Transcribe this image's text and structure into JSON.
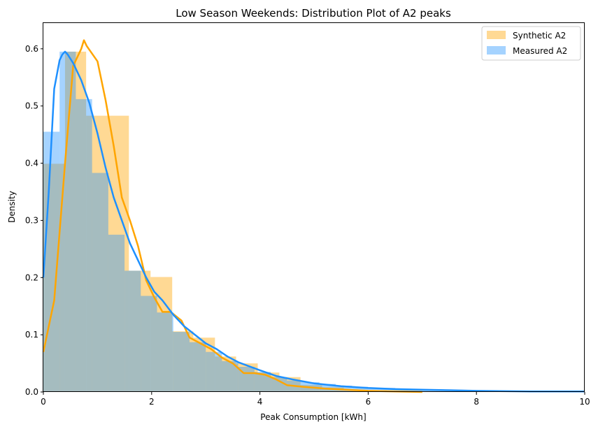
{
  "chart_data": {
    "type": "histogram+kde",
    "title": "Low Season Weekends: Distribution Plot of A2 peaks",
    "xlabel": "Peak Consumption [kWh]",
    "ylabel": "Density",
    "xlim": [
      0,
      10
    ],
    "ylim": [
      0,
      0.645
    ],
    "xticks": [
      0,
      2,
      4,
      6,
      8,
      10
    ],
    "yticks": [
      0.0,
      0.1,
      0.2,
      0.3,
      0.4,
      0.5,
      0.6
    ],
    "ytick_labels": [
      "0.0",
      "0.1",
      "0.2",
      "0.3",
      "0.4",
      "0.5",
      "0.6"
    ],
    "grid": false,
    "legend_position": "top-right",
    "series": [
      {
        "name": "Synthetic A2",
        "color": "#FFA500",
        "hist_edges": [
          0,
          0.4,
          0.79,
          1.58,
          1.98,
          2.38,
          2.77,
          3.17,
          3.56,
          3.96,
          4.36,
          4.75,
          5.15,
          5.55,
          5.94,
          6.34,
          6.73,
          7.13
        ],
        "hist_values": [
          0.399,
          0.595,
          0.483,
          0.212,
          0.201,
          0.106,
          0.095,
          0.062,
          0.05,
          0.034,
          0.026,
          0.012,
          0.008,
          0.004,
          0.003,
          0.002,
          0.001
        ],
        "kde": {
          "x": [
            0,
            0.2,
            0.4,
            0.55,
            0.7,
            0.75,
            0.8,
            1.0,
            1.15,
            1.3,
            1.45,
            1.6,
            1.75,
            1.9,
            2.05,
            2.2,
            2.35,
            2.55,
            2.7,
            2.9,
            3.1,
            3.3,
            3.5,
            3.7,
            3.9,
            4.1,
            4.3,
            4.5,
            4.8,
            5.2,
            5.6,
            6.0,
            6.5,
            7.0
          ],
          "y": [
            0.07,
            0.16,
            0.4,
            0.57,
            0.6,
            0.615,
            0.605,
            0.578,
            0.51,
            0.43,
            0.34,
            0.3,
            0.255,
            0.195,
            0.165,
            0.14,
            0.14,
            0.125,
            0.095,
            0.085,
            0.075,
            0.06,
            0.05,
            0.033,
            0.033,
            0.03,
            0.022,
            0.012,
            0.009,
            0.006,
            0.004,
            0.002,
            0.001,
            0.0
          ]
        }
      },
      {
        "name": "Measured A2",
        "color": "#1E90FF",
        "hist_edges": [
          0,
          0.3,
          0.6,
          0.9,
          1.2,
          1.5,
          1.8,
          2.1,
          2.4,
          2.7,
          3.0,
          3.3,
          3.6,
          3.9,
          4.2,
          4.5,
          4.8,
          5.1,
          5.4,
          5.7,
          6.0,
          6.5,
          7.0,
          8.0,
          9.0,
          10.0
        ],
        "hist_values": [
          0.455,
          0.595,
          0.512,
          0.383,
          0.275,
          0.212,
          0.168,
          0.139,
          0.105,
          0.087,
          0.07,
          0.054,
          0.044,
          0.035,
          0.026,
          0.02,
          0.017,
          0.014,
          0.011,
          0.009,
          0.007,
          0.005,
          0.003,
          0.002,
          0.001
        ],
        "kde": {
          "x": [
            0,
            0.1,
            0.2,
            0.3,
            0.35,
            0.4,
            0.45,
            0.55,
            0.7,
            0.85,
            1.0,
            1.15,
            1.3,
            1.45,
            1.6,
            1.75,
            1.9,
            2.05,
            2.2,
            2.4,
            2.6,
            2.8,
            3.0,
            3.2,
            3.4,
            3.6,
            3.8,
            4.0,
            4.3,
            4.6,
            5.0,
            5.5,
            6.0,
            6.5,
            7.0,
            7.5,
            8.0,
            9.0,
            10.0
          ],
          "y": [
            0.2,
            0.35,
            0.53,
            0.58,
            0.59,
            0.595,
            0.59,
            0.575,
            0.545,
            0.505,
            0.452,
            0.392,
            0.34,
            0.3,
            0.26,
            0.23,
            0.2,
            0.175,
            0.16,
            0.135,
            0.115,
            0.1,
            0.085,
            0.075,
            0.062,
            0.052,
            0.045,
            0.038,
            0.028,
            0.022,
            0.015,
            0.01,
            0.007,
            0.005,
            0.004,
            0.003,
            0.002,
            0.001,
            0.001
          ]
        }
      }
    ]
  }
}
